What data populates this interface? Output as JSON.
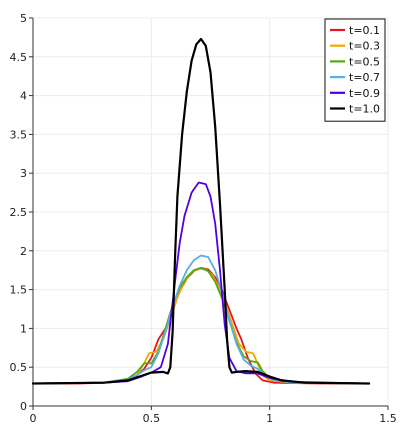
{
  "chart_data": {
    "type": "line",
    "title": "",
    "xlabel": "",
    "ylabel": "",
    "xlim": [
      0,
      1.5
    ],
    "ylim": [
      0,
      5
    ],
    "grid": true,
    "legend_position": "top-right",
    "x_ticks": [
      "0",
      "0.5",
      "1",
      "1.5"
    ],
    "y_ticks": [
      "0",
      "0.5",
      "1",
      "1.5",
      "2",
      "2.5",
      "3",
      "3.5",
      "4",
      "4.5",
      "5"
    ],
    "series": [
      {
        "name": "t=0.1",
        "color": "#e8161b",
        "points": [
          [
            0,
            0.29
          ],
          [
            0.2,
            0.29
          ],
          [
            0.3,
            0.3
          ],
          [
            0.38,
            0.32
          ],
          [
            0.43,
            0.37
          ],
          [
            0.47,
            0.48
          ],
          [
            0.5,
            0.62
          ],
          [
            0.53,
            0.86
          ],
          [
            0.56,
            1.0
          ],
          [
            0.59,
            1.25
          ],
          [
            0.62,
            1.48
          ],
          [
            0.65,
            1.64
          ],
          [
            0.68,
            1.74
          ],
          [
            0.71,
            1.78
          ],
          [
            0.74,
            1.76
          ],
          [
            0.77,
            1.66
          ],
          [
            0.8,
            1.48
          ],
          [
            0.83,
            1.24
          ],
          [
            0.86,
            1.0
          ],
          [
            0.88,
            0.86
          ],
          [
            0.91,
            0.6
          ],
          [
            0.94,
            0.42
          ],
          [
            0.97,
            0.33
          ],
          [
            1.02,
            0.3
          ],
          [
            1.2,
            0.29
          ],
          [
            1.42,
            0.29
          ]
        ]
      },
      {
        "name": "t=0.3",
        "color": "#f5a700",
        "points": [
          [
            0,
            0.29
          ],
          [
            0.3,
            0.3
          ],
          [
            0.4,
            0.34
          ],
          [
            0.44,
            0.4
          ],
          [
            0.47,
            0.55
          ],
          [
            0.49,
            0.68
          ],
          [
            0.52,
            0.7
          ],
          [
            0.55,
            0.86
          ],
          [
            0.58,
            1.12
          ],
          [
            0.61,
            1.4
          ],
          [
            0.64,
            1.6
          ],
          [
            0.67,
            1.72
          ],
          [
            0.7,
            1.77
          ],
          [
            0.73,
            1.76
          ],
          [
            0.76,
            1.68
          ],
          [
            0.79,
            1.5
          ],
          [
            0.82,
            1.25
          ],
          [
            0.85,
            0.98
          ],
          [
            0.87,
            0.8
          ],
          [
            0.9,
            0.7
          ],
          [
            0.93,
            0.68
          ],
          [
            0.95,
            0.54
          ],
          [
            0.97,
            0.4
          ],
          [
            1.0,
            0.33
          ],
          [
            1.1,
            0.3
          ],
          [
            1.42,
            0.29
          ]
        ]
      },
      {
        "name": "t=0.5",
        "color": "#54a80f",
        "points": [
          [
            0,
            0.29
          ],
          [
            0.3,
            0.3
          ],
          [
            0.4,
            0.35
          ],
          [
            0.44,
            0.44
          ],
          [
            0.47,
            0.55
          ],
          [
            0.5,
            0.55
          ],
          [
            0.53,
            0.7
          ],
          [
            0.56,
            1.0
          ],
          [
            0.59,
            1.3
          ],
          [
            0.62,
            1.52
          ],
          [
            0.65,
            1.66
          ],
          [
            0.68,
            1.75
          ],
          [
            0.71,
            1.78
          ],
          [
            0.74,
            1.74
          ],
          [
            0.77,
            1.6
          ],
          [
            0.8,
            1.38
          ],
          [
            0.83,
            1.1
          ],
          [
            0.86,
            0.82
          ],
          [
            0.89,
            0.64
          ],
          [
            0.92,
            0.58
          ],
          [
            0.95,
            0.56
          ],
          [
            0.97,
            0.45
          ],
          [
            1.0,
            0.36
          ],
          [
            1.1,
            0.3
          ],
          [
            1.42,
            0.29
          ]
        ]
      },
      {
        "name": "t=0.7",
        "color": "#5aaee8",
        "points": [
          [
            0,
            0.29
          ],
          [
            0.3,
            0.3
          ],
          [
            0.4,
            0.34
          ],
          [
            0.44,
            0.4
          ],
          [
            0.47,
            0.46
          ],
          [
            0.5,
            0.5
          ],
          [
            0.53,
            0.68
          ],
          [
            0.56,
            0.96
          ],
          [
            0.59,
            1.28
          ],
          [
            0.62,
            1.55
          ],
          [
            0.65,
            1.75
          ],
          [
            0.68,
            1.88
          ],
          [
            0.71,
            1.94
          ],
          [
            0.74,
            1.92
          ],
          [
            0.77,
            1.75
          ],
          [
            0.8,
            1.45
          ],
          [
            0.83,
            1.1
          ],
          [
            0.86,
            0.8
          ],
          [
            0.89,
            0.6
          ],
          [
            0.92,
            0.52
          ],
          [
            0.95,
            0.48
          ],
          [
            0.98,
            0.4
          ],
          [
            1.02,
            0.33
          ],
          [
            1.1,
            0.3
          ],
          [
            1.42,
            0.29
          ]
        ]
      },
      {
        "name": "t=0.9",
        "color": "#5100e0",
        "points": [
          [
            0,
            0.29
          ],
          [
            0.3,
            0.3
          ],
          [
            0.4,
            0.32
          ],
          [
            0.45,
            0.37
          ],
          [
            0.5,
            0.43
          ],
          [
            0.54,
            0.5
          ],
          [
            0.57,
            0.8
          ],
          [
            0.6,
            1.6
          ],
          [
            0.62,
            2.1
          ],
          [
            0.64,
            2.45
          ],
          [
            0.67,
            2.75
          ],
          [
            0.7,
            2.88
          ],
          [
            0.73,
            2.86
          ],
          [
            0.75,
            2.7
          ],
          [
            0.77,
            2.35
          ],
          [
            0.79,
            1.75
          ],
          [
            0.81,
            1.05
          ],
          [
            0.83,
            0.62
          ],
          [
            0.86,
            0.45
          ],
          [
            0.9,
            0.42
          ],
          [
            0.95,
            0.42
          ],
          [
            1.0,
            0.36
          ],
          [
            1.1,
            0.31
          ],
          [
            1.42,
            0.29
          ]
        ]
      },
      {
        "name": "t=1.0",
        "color": "#000000",
        "points": [
          [
            0,
            0.29
          ],
          [
            0.3,
            0.3
          ],
          [
            0.4,
            0.33
          ],
          [
            0.45,
            0.38
          ],
          [
            0.5,
            0.43
          ],
          [
            0.55,
            0.44
          ],
          [
            0.57,
            0.42
          ],
          [
            0.58,
            0.5
          ],
          [
            0.59,
            0.95
          ],
          [
            0.6,
            1.9
          ],
          [
            0.61,
            2.7
          ],
          [
            0.63,
            3.5
          ],
          [
            0.65,
            4.05
          ],
          [
            0.67,
            4.45
          ],
          [
            0.69,
            4.66
          ],
          [
            0.71,
            4.73
          ],
          [
            0.73,
            4.64
          ],
          [
            0.75,
            4.3
          ],
          [
            0.77,
            3.6
          ],
          [
            0.79,
            2.6
          ],
          [
            0.81,
            1.5
          ],
          [
            0.82,
            0.85
          ],
          [
            0.83,
            0.5
          ],
          [
            0.84,
            0.43
          ],
          [
            0.86,
            0.44
          ],
          [
            0.9,
            0.45
          ],
          [
            0.95,
            0.44
          ],
          [
            1.0,
            0.38
          ],
          [
            1.05,
            0.33
          ],
          [
            1.15,
            0.3
          ],
          [
            1.42,
            0.29
          ]
        ]
      }
    ]
  }
}
